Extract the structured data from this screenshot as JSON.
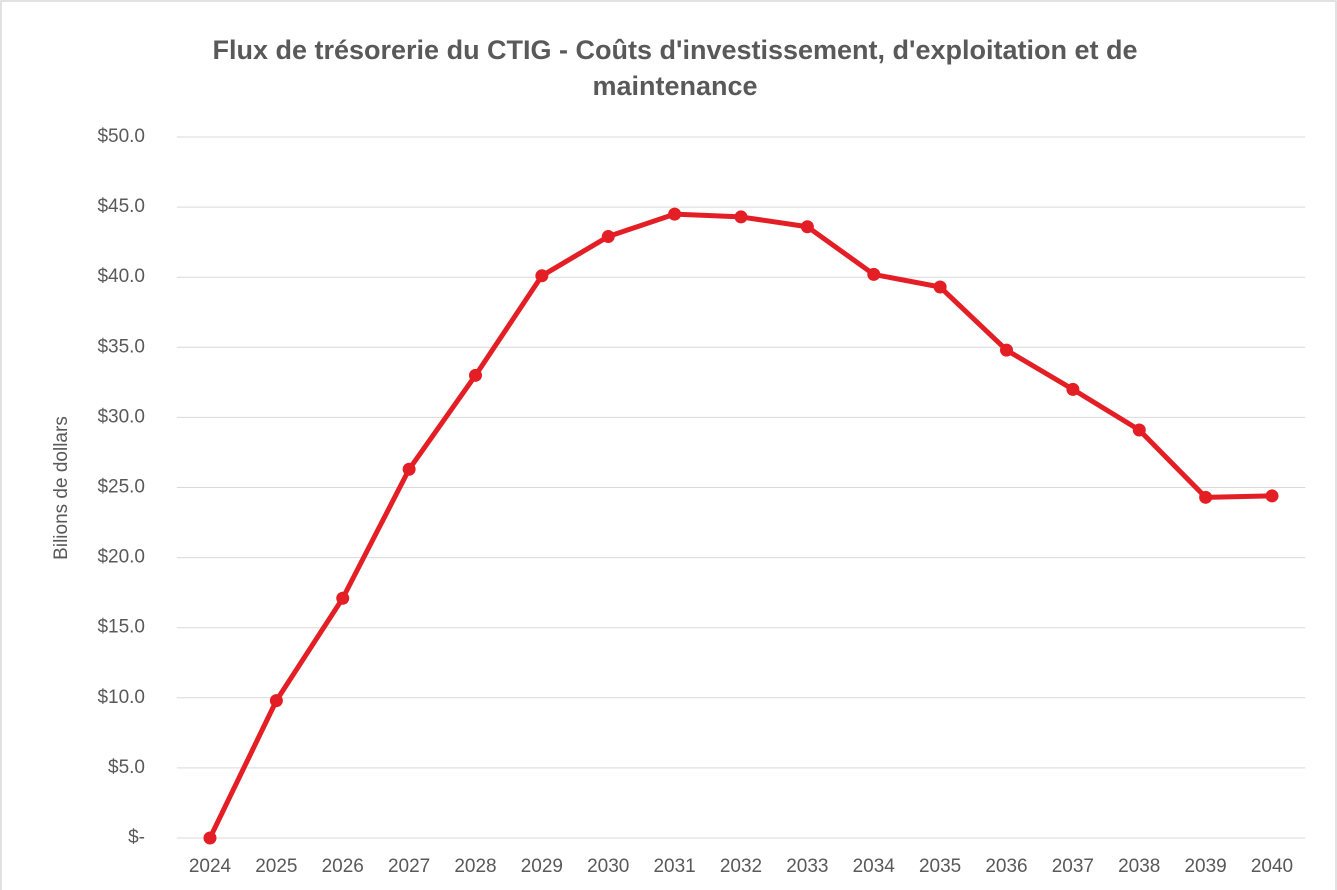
{
  "chart_data": {
    "type": "line",
    "title": "Flux de trésorerie du CTIG - Coûts d'investissement, d'exploitation et de maintenance",
    "y_label": "Bilions de dollars",
    "categories": [
      "2024",
      "2025",
      "2026",
      "2027",
      "2028",
      "2029",
      "2030",
      "2031",
      "2032",
      "2033",
      "2034",
      "2035",
      "2036",
      "2037",
      "2038",
      "2039",
      "2040"
    ],
    "values": [
      0,
      9.8,
      17.1,
      26.3,
      33.0,
      40.1,
      42.9,
      44.5,
      44.3,
      43.6,
      40.2,
      39.3,
      34.8,
      32.0,
      29.1,
      24.3,
      24.4
    ],
    "color": "#e31e24",
    "ylim": [
      0,
      50
    ],
    "yticks": [
      {
        "value": 0,
        "label": "$-"
      },
      {
        "value": 5,
        "label": "$5.0"
      },
      {
        "value": 10,
        "label": "$10.0"
      },
      {
        "value": 15,
        "label": "$15.0"
      },
      {
        "value": 20,
        "label": "$20.0"
      },
      {
        "value": 25,
        "label": "$25.0"
      },
      {
        "value": 30,
        "label": "$30.0"
      },
      {
        "value": 35,
        "label": "$35.0"
      },
      {
        "value": 40,
        "label": "$40.0"
      },
      {
        "value": 45,
        "label": "$45.0"
      },
      {
        "value": 50,
        "label": "$50.0"
      }
    ],
    "grid": true
  }
}
